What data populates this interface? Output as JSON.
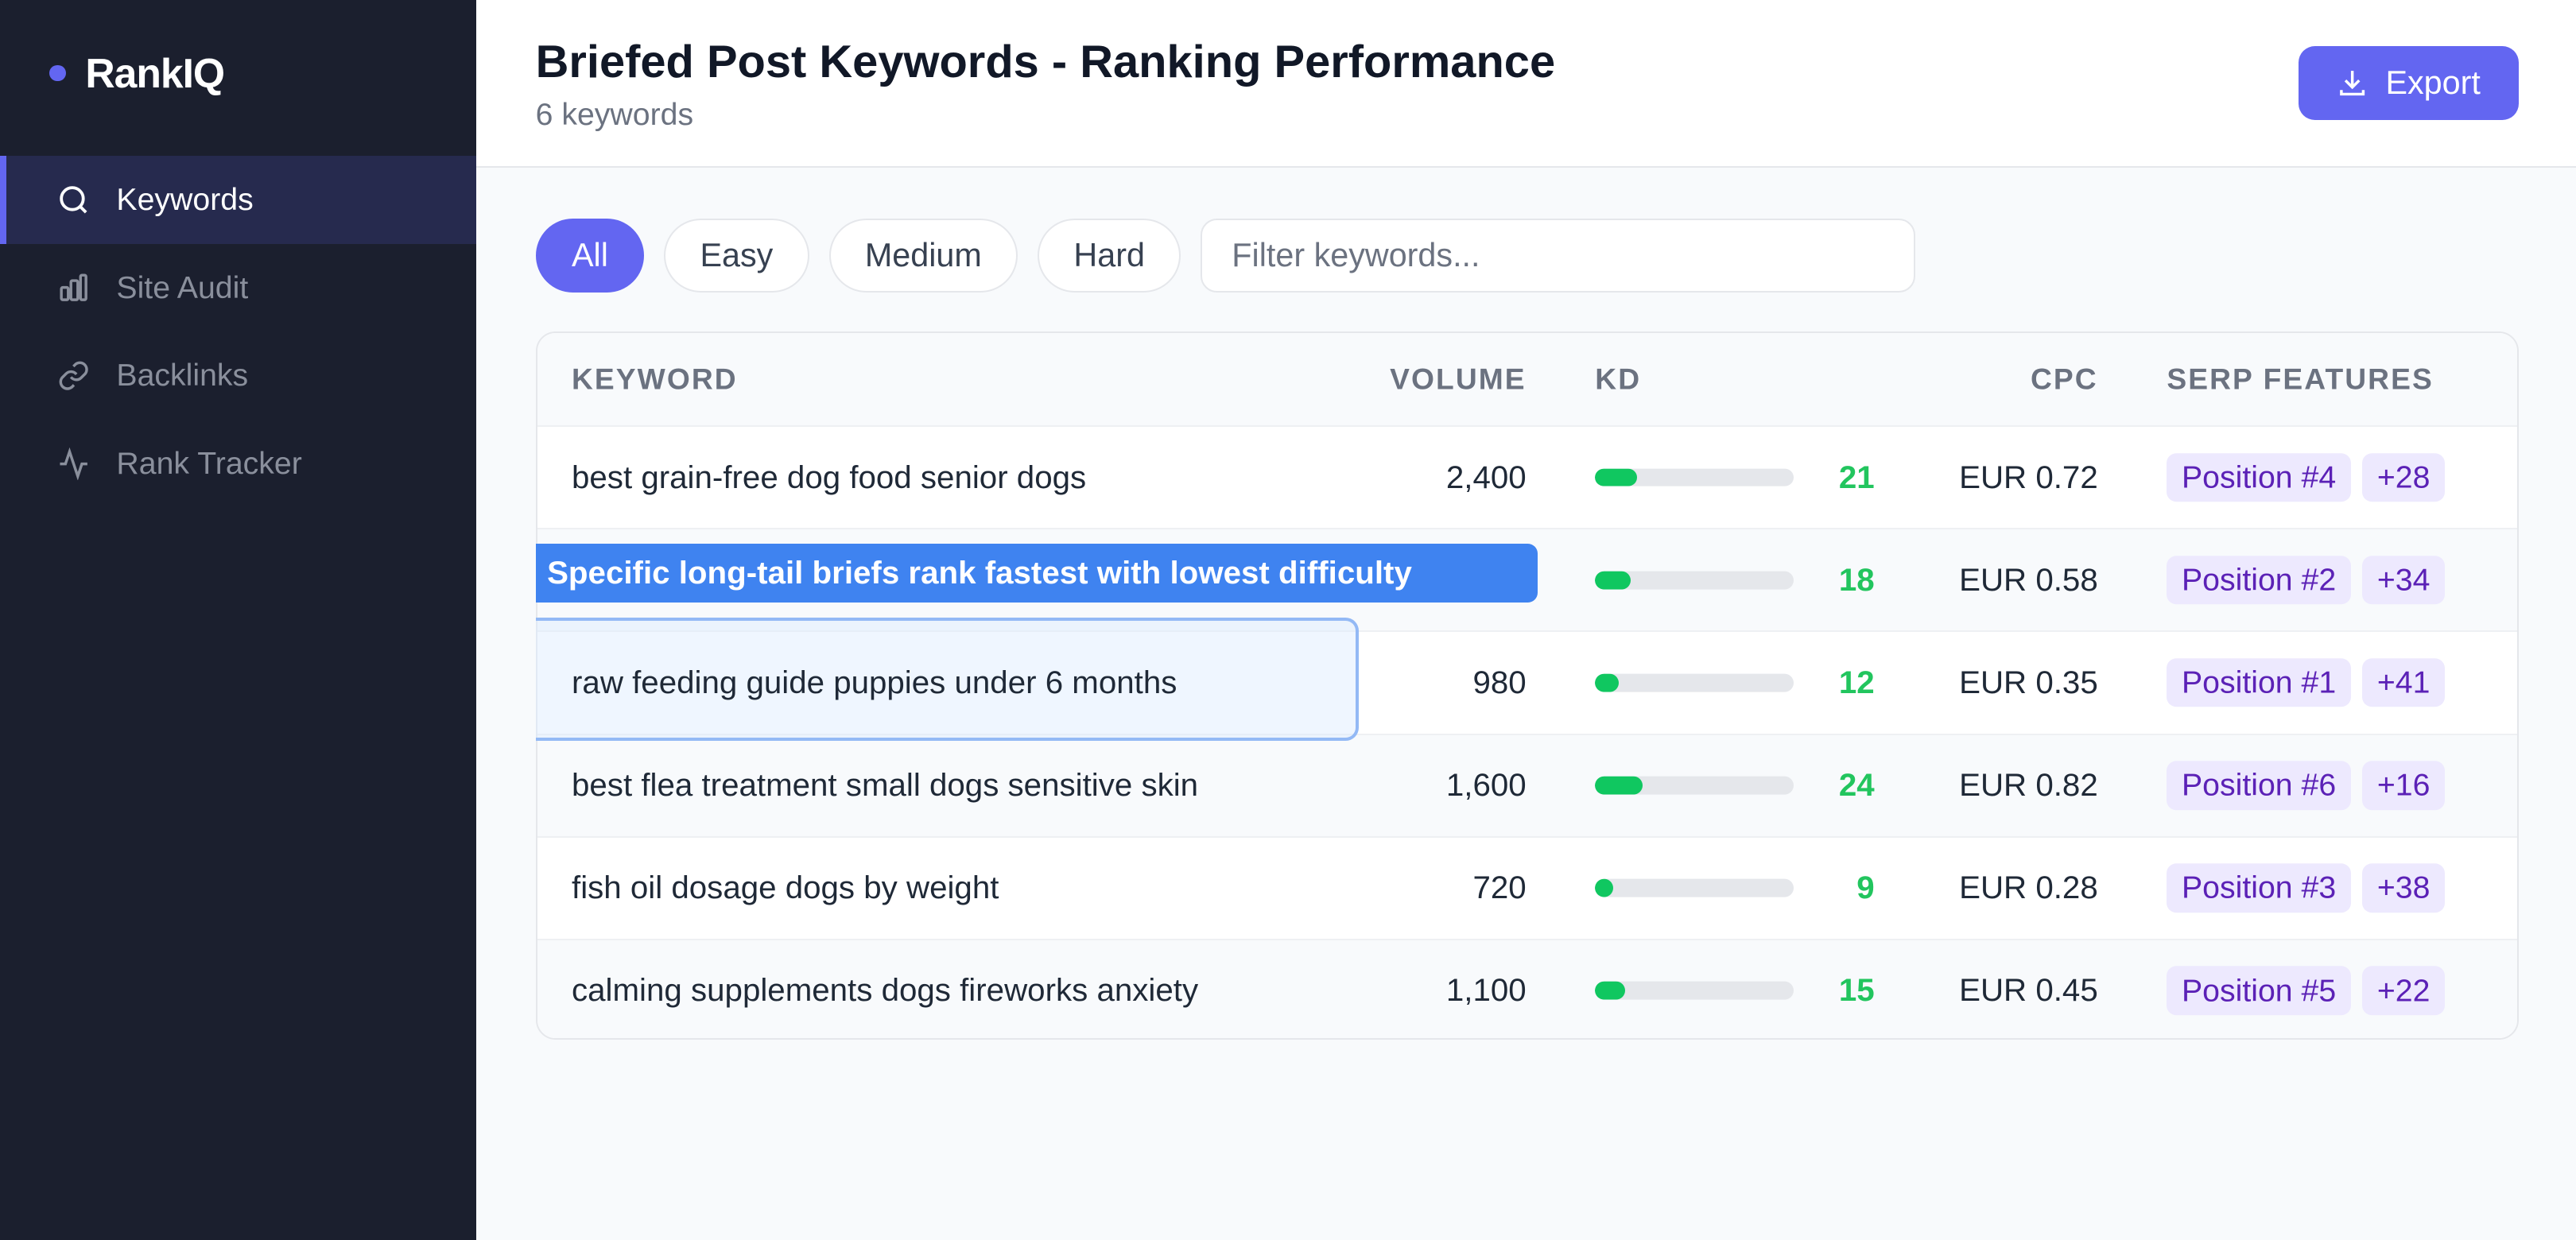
{
  "app": {
    "name": "RankIQ",
    "accent": "#6366f1"
  },
  "sidebar": {
    "items": [
      {
        "label": "Keywords",
        "icon": "search-icon",
        "active": true
      },
      {
        "label": "Site Audit",
        "icon": "bar-chart-icon"
      },
      {
        "label": "Backlinks",
        "icon": "link-icon"
      },
      {
        "label": "Rank Tracker",
        "icon": "activity-icon"
      }
    ]
  },
  "header": {
    "title": "Briefed Post Keywords - Ranking Performance",
    "subtitle": "6 keywords",
    "export_label": "Export"
  },
  "filters": {
    "options": [
      "All",
      "Easy",
      "Medium",
      "Hard"
    ],
    "selected": "All",
    "search_placeholder": "Filter keywords..."
  },
  "table": {
    "columns": [
      "KEYWORD",
      "VOLUME",
      "KD",
      "CPC",
      "SERP FEATURES"
    ],
    "rows": [
      {
        "keyword": "best grain-free dog food senior dogs",
        "volume": "2,400",
        "kd": 21,
        "cpc": "EUR 0.72",
        "position": "Position #4",
        "change": "+28"
      },
      {
        "keyword": "",
        "volume": "",
        "kd": 18,
        "cpc": "EUR 0.58",
        "position": "Position #2",
        "change": "+34"
      },
      {
        "keyword": "raw feeding guide puppies under 6 months",
        "volume": "980",
        "kd": 12,
        "cpc": "EUR 0.35",
        "position": "Position #1",
        "change": "+41"
      },
      {
        "keyword": "best flea treatment small dogs sensitive skin",
        "volume": "1,600",
        "kd": 24,
        "cpc": "EUR 0.82",
        "position": "Position #6",
        "change": "+16"
      },
      {
        "keyword": "fish oil dosage dogs by weight",
        "volume": "720",
        "kd": 9,
        "cpc": "EUR 0.28",
        "position": "Position #3",
        "change": "+38"
      },
      {
        "keyword": "calming supplements dogs fireworks anxiety",
        "volume": "1,100",
        "kd": 15,
        "cpc": "EUR 0.45",
        "position": "Position #5",
        "change": "+22"
      }
    ]
  },
  "annotation": {
    "tooltip": "Specific long-tail briefs rank fastest with lowest difficulty",
    "highlighted_keyword": "raw feeding guide puppies under 6 months"
  }
}
